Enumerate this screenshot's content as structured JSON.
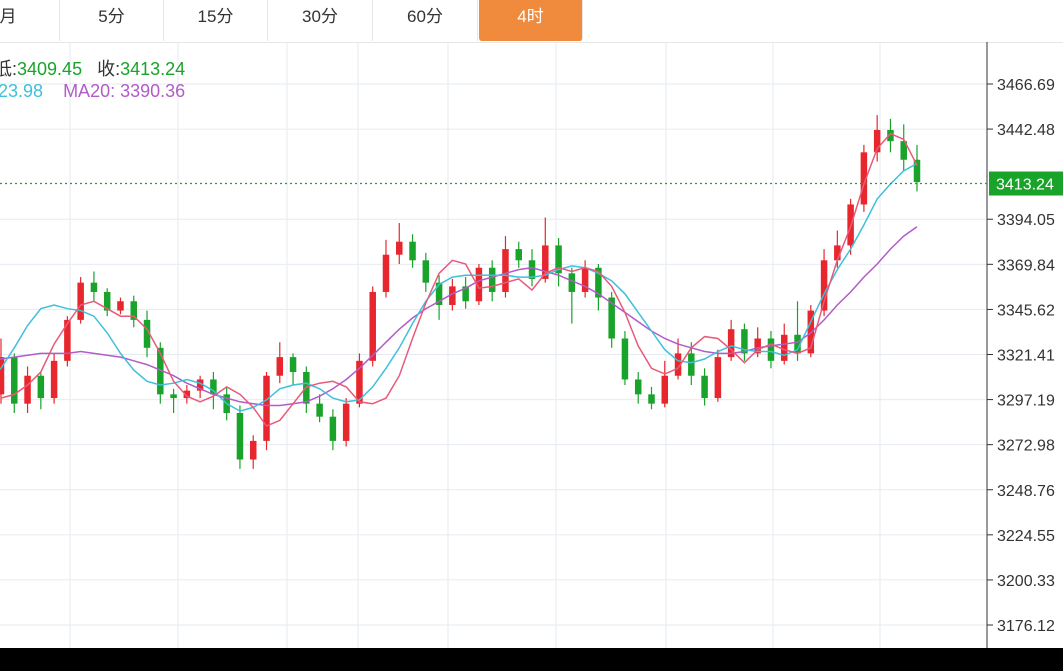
{
  "tabs": [
    {
      "label": "月",
      "active": false
    },
    {
      "label": "5分",
      "active": false
    },
    {
      "label": "15分",
      "active": false
    },
    {
      "label": "30分",
      "active": false
    },
    {
      "label": "60分",
      "active": false
    },
    {
      "label": "4时",
      "active": true
    }
  ],
  "info": {
    "low_label": "低:",
    "low_value": "3409.45",
    "close_label": "收:",
    "close_value": "3413.24",
    "ma10_value": "23.98",
    "ma20_label": "MA20:",
    "ma20_value": "3390.36"
  },
  "colors": {
    "up": "#e8262d",
    "down": "#1aa32a",
    "ma5": "#e85a7a",
    "ma10": "#3ec0d9",
    "ma20": "#b15cc8",
    "accent_tab": "#f08a3c",
    "current_price_box": "#1aa32a"
  },
  "chart_data": {
    "type": "candlestick",
    "y_ticks": [
      "3466.69",
      "3442.48",
      "3394.05",
      "3369.84",
      "3345.62",
      "3321.41",
      "3297.19",
      "3272.98",
      "3248.76",
      "3224.55",
      "3200.33",
      "3176.12"
    ],
    "ylim": [
      3167,
      3480
    ],
    "grid": true,
    "current_price": "3413.24",
    "series": [
      {
        "name": "MA20",
        "values": [
          3288,
          3290,
          3293,
          3296,
          3299,
          3302,
          3306,
          3309,
          3312,
          3315,
          3317,
          3319,
          3320,
          3321,
          3322,
          3322,
          3322,
          3323,
          3322,
          3321,
          3320,
          3318,
          3316,
          3313,
          3310,
          3306,
          3303,
          3300,
          3298,
          3296,
          3295,
          3294,
          3294,
          3295,
          3296,
          3299,
          3303,
          3308,
          3314,
          3321,
          3328,
          3335,
          3341,
          3346,
          3350,
          3354,
          3357,
          3361,
          3363,
          3365,
          3367,
          3368,
          3366,
          3364,
          3361,
          3358,
          3354,
          3349,
          3344,
          3339,
          3334,
          3330,
          3327,
          3325,
          3323,
          3322,
          3322,
          3323,
          3325,
          3326,
          3327,
          3328,
          3333,
          3340,
          3348,
          3355,
          3363,
          3370,
          3378,
          3385,
          3390
        ]
      },
      {
        "name": "MA10",
        "values": [
          3312,
          3306,
          3305,
          3308,
          3314,
          3325,
          3337,
          3346,
          3348,
          3346,
          3345,
          3342,
          3333,
          3322,
          3313,
          3307,
          3305,
          3306,
          3308,
          3306,
          3302,
          3295,
          3291,
          3293,
          3297,
          3303,
          3305,
          3306,
          3303,
          3298,
          3296,
          3297,
          3304,
          3314,
          3325,
          3338,
          3350,
          3359,
          3363,
          3364,
          3364,
          3364,
          3364,
          3363,
          3363,
          3364,
          3367,
          3369,
          3368,
          3365,
          3361,
          3354,
          3344,
          3334,
          3324,
          3318,
          3317,
          3319,
          3323,
          3326,
          3324,
          3323,
          3323,
          3321,
          3324,
          3339,
          3354,
          3367,
          3378,
          3391,
          3405,
          3413,
          3420,
          3424
        ]
      },
      {
        "name": "MA5",
        "values": [
          3298,
          3300,
          3305,
          3312,
          3327,
          3338,
          3348,
          3350,
          3346,
          3342,
          3342,
          3335,
          3322,
          3307,
          3299,
          3296,
          3299,
          3304,
          3300,
          3293,
          3283,
          3286,
          3295,
          3304,
          3306,
          3307,
          3304,
          3296,
          3295,
          3298,
          3310,
          3330,
          3349,
          3365,
          3372,
          3370,
          3357,
          3358,
          3360,
          3362,
          3356,
          3365,
          3368,
          3366,
          3368,
          3366,
          3358,
          3344,
          3326,
          3314,
          3311,
          3314,
          3325,
          3331,
          3330,
          3324,
          3317,
          3324,
          3327,
          3324,
          3322,
          3325,
          3350,
          3372,
          3390,
          3413,
          3432,
          3440,
          3437,
          3423
        ]
      },
      {
        "name": "candles_ohlc",
        "values": [
          [
            3300,
            3320,
            3295,
            3330
          ],
          [
            3320,
            3295,
            3290,
            3322
          ],
          [
            3295,
            3310,
            3290,
            3315
          ],
          [
            3310,
            3298,
            3292,
            3312
          ],
          [
            3298,
            3318,
            3295,
            3322
          ],
          [
            3318,
            3340,
            3315,
            3342
          ],
          [
            3340,
            3360,
            3338,
            3363
          ],
          [
            3360,
            3355,
            3350,
            3366
          ],
          [
            3355,
            3345,
            3342,
            3357
          ],
          [
            3345,
            3350,
            3343,
            3352
          ],
          [
            3350,
            3340,
            3336,
            3353
          ],
          [
            3340,
            3325,
            3320,
            3345
          ],
          [
            3325,
            3300,
            3295,
            3328
          ],
          [
            3300,
            3298,
            3290,
            3303
          ],
          [
            3298,
            3302,
            3295,
            3305
          ],
          [
            3302,
            3308,
            3298,
            3310
          ],
          [
            3308,
            3300,
            3292,
            3312
          ],
          [
            3300,
            3290,
            3286,
            3304
          ],
          [
            3290,
            3265,
            3260,
            3294
          ],
          [
            3265,
            3275,
            3260,
            3278
          ],
          [
            3275,
            3310,
            3270,
            3312
          ],
          [
            3310,
            3320,
            3306,
            3328
          ],
          [
            3320,
            3312,
            3305,
            3322
          ],
          [
            3312,
            3295,
            3290,
            3315
          ],
          [
            3295,
            3288,
            3285,
            3300
          ],
          [
            3288,
            3275,
            3270,
            3292
          ],
          [
            3275,
            3295,
            3272,
            3298
          ],
          [
            3295,
            3318,
            3293,
            3322
          ],
          [
            3318,
            3355,
            3315,
            3358
          ],
          [
            3355,
            3375,
            3352,
            3383
          ],
          [
            3375,
            3382,
            3370,
            3392
          ],
          [
            3382,
            3372,
            3368,
            3386
          ],
          [
            3372,
            3360,
            3355,
            3376
          ],
          [
            3360,
            3348,
            3340,
            3364
          ],
          [
            3348,
            3358,
            3345,
            3362
          ],
          [
            3358,
            3350,
            3346,
            3363
          ],
          [
            3350,
            3368,
            3348,
            3370
          ],
          [
            3368,
            3355,
            3350,
            3372
          ],
          [
            3355,
            3378,
            3352,
            3385
          ],
          [
            3378,
            3372,
            3368,
            3382
          ],
          [
            3372,
            3362,
            3358,
            3378
          ],
          [
            3362,
            3380,
            3360,
            3395
          ],
          [
            3380,
            3365,
            3358,
            3384
          ],
          [
            3365,
            3355,
            3338,
            3368
          ],
          [
            3355,
            3368,
            3352,
            3372
          ],
          [
            3368,
            3352,
            3345,
            3370
          ],
          [
            3352,
            3330,
            3325,
            3355
          ],
          [
            3330,
            3308,
            3305,
            3334
          ],
          [
            3308,
            3300,
            3295,
            3312
          ],
          [
            3300,
            3295,
            3292,
            3304
          ],
          [
            3295,
            3310,
            3293,
            3318
          ],
          [
            3310,
            3322,
            3308,
            3330
          ],
          [
            3322,
            3310,
            3305,
            3328
          ],
          [
            3310,
            3298,
            3294,
            3314
          ],
          [
            3298,
            3320,
            3296,
            3324
          ],
          [
            3320,
            3335,
            3318,
            3340
          ],
          [
            3335,
            3322,
            3318,
            3338
          ],
          [
            3322,
            3330,
            3320,
            3336
          ],
          [
            3330,
            3318,
            3314,
            3334
          ],
          [
            3318,
            3332,
            3316,
            3338
          ],
          [
            3332,
            3322,
            3318,
            3350
          ],
          [
            3322,
            3345,
            3320,
            3348
          ],
          [
            3345,
            3372,
            3342,
            3378
          ],
          [
            3372,
            3380,
            3368,
            3388
          ],
          [
            3380,
            3402,
            3375,
            3405
          ],
          [
            3402,
            3430,
            3398,
            3434
          ],
          [
            3430,
            3442,
            3425,
            3450
          ],
          [
            3442,
            3436,
            3430,
            3448
          ],
          [
            3436,
            3426,
            3420,
            3445
          ],
          [
            3426,
            3414,
            3409,
            3434
          ]
        ]
      }
    ]
  }
}
